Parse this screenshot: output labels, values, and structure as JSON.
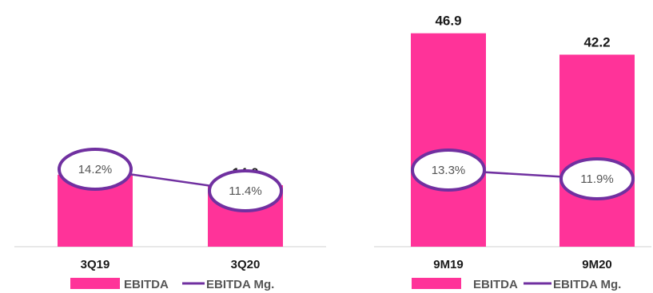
{
  "chart_data": [
    {
      "type": "bar",
      "categories": [
        "3Q19",
        "3Q20"
      ],
      "series": [
        {
          "name": "EBITDA",
          "type": "bar",
          "values": [
            16.4,
            14.0
          ],
          "labels": [
            "16.4",
            "14.0"
          ]
        },
        {
          "name": "EBITDA Mg.",
          "type": "line",
          "values": [
            14.2,
            11.4
          ],
          "labels": [
            "14.2%",
            "11.4%"
          ]
        }
      ],
      "title": "",
      "xlabel": "",
      "ylabel": "",
      "ylim": [
        0,
        50
      ],
      "grid": false,
      "legend": "bottom",
      "colors": {
        "bar": "#FF3399",
        "line": "#7030A0"
      }
    },
    {
      "type": "bar",
      "categories": [
        "9M19",
        "9M20"
      ],
      "series": [
        {
          "name": "EBITDA",
          "type": "bar",
          "values": [
            46.9,
            42.2
          ],
          "labels": [
            "46.9",
            "42.2"
          ]
        },
        {
          "name": "EBITDA Mg.",
          "type": "line",
          "values": [
            13.3,
            11.9
          ],
          "labels": [
            "13.3%",
            "11.9%"
          ]
        }
      ],
      "title": "",
      "xlabel": "",
      "ylabel": "",
      "ylim": [
        0,
        50
      ],
      "grid": false,
      "legend": "bottom",
      "colors": {
        "bar": "#FF3399",
        "line": "#7030A0"
      }
    }
  ]
}
